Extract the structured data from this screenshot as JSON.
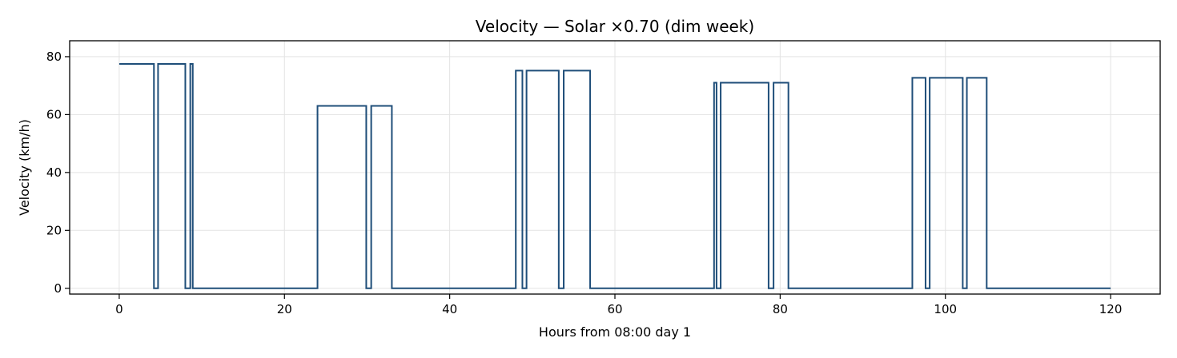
{
  "chart_data": {
    "type": "line",
    "title": "Velocity — Solar ×0.70 (dim week)",
    "xlabel": "Hours from 08:00 day 1",
    "ylabel": "Velocity (km/h)",
    "xlim": [
      -6,
      126
    ],
    "ylim": [
      -2,
      85.5
    ],
    "x_ticks": [
      0,
      20,
      40,
      60,
      80,
      100,
      120
    ],
    "y_ticks": [
      0,
      20,
      40,
      60,
      80
    ],
    "grid": true,
    "line_style": "step",
    "series": [
      {
        "color": "#1f4e79",
        "x": [
          0,
          4.2,
          4.2,
          4.7,
          4.7,
          8.0,
          8.0,
          8.6,
          8.6,
          8.9,
          8.9,
          24.0,
          24.0,
          29.9,
          29.9,
          30.5,
          30.5,
          33.0,
          33.0,
          48.0,
          48.0,
          48.8,
          48.8,
          49.3,
          49.3,
          53.2,
          53.2,
          53.8,
          53.8,
          57.0,
          57.0,
          72.0,
          72.0,
          72.3,
          72.3,
          72.8,
          72.8,
          78.6,
          78.6,
          79.2,
          79.2,
          81.0,
          81.0,
          96.0,
          96.0,
          97.6,
          97.6,
          98.1,
          98.1,
          102.1,
          102.1,
          102.6,
          102.6,
          105.0,
          105.0,
          120.0
        ],
        "y": [
          77.5,
          77.5,
          0,
          0,
          77.5,
          77.5,
          0,
          0,
          77.5,
          77.5,
          0,
          0,
          63,
          63,
          0,
          0,
          63,
          63,
          0,
          0,
          75.2,
          75.2,
          0,
          0,
          75.2,
          75.2,
          0,
          0,
          75.2,
          75.2,
          0,
          0,
          71,
          71,
          0,
          0,
          71,
          71,
          0,
          0,
          71,
          71,
          0,
          0,
          72.7,
          72.7,
          0,
          0,
          72.7,
          72.7,
          0,
          0,
          72.7,
          72.7,
          0,
          0
        ]
      }
    ]
  }
}
